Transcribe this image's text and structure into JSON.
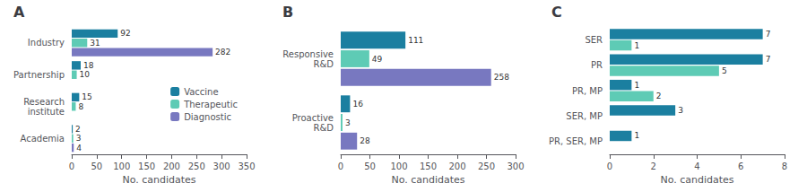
{
  "chart_data": [
    {
      "type": "bar",
      "title": "A",
      "orientation": "horizontal",
      "categories": [
        "Industry",
        "Partnership",
        "Research\ninstitute",
        "Academia"
      ],
      "series": [
        {
          "name": "Vaccine",
          "color": "#1b7fa0",
          "values": [
            92,
            18,
            15,
            2
          ]
        },
        {
          "name": "Therapeutic",
          "color": "#5ecbb5",
          "values": [
            31,
            10,
            8,
            3
          ]
        },
        {
          "name": "Diagnostic",
          "color": "#7878c0",
          "values": [
            282,
            0,
            0,
            4
          ]
        }
      ],
      "xlim": [
        0,
        350
      ],
      "xticks": [
        0,
        50,
        100,
        150,
        200,
        250,
        300,
        350
      ],
      "xlabel": "No. candidates",
      "data_labels": true,
      "grid": false,
      "legend": "right"
    },
    {
      "type": "bar",
      "title": "B",
      "orientation": "horizontal",
      "categories": [
        "Responsive\nR&D",
        "Proactive\nR&D"
      ],
      "series": [
        {
          "name": "Vaccine",
          "color": "#1b7fa0",
          "values": [
            111,
            16
          ]
        },
        {
          "name": "Therapeutic",
          "color": "#5ecbb5",
          "values": [
            49,
            3
          ]
        },
        {
          "name": "Diagnostic",
          "color": "#7878c0",
          "values": [
            258,
            28
          ]
        }
      ],
      "xlim": [
        0,
        300
      ],
      "xticks": [
        0,
        50,
        100,
        150,
        200,
        250,
        300
      ],
      "xlabel": "No. candidates",
      "data_labels": true,
      "grid": false
    },
    {
      "type": "bar",
      "title": "C",
      "orientation": "horizontal",
      "categories": [
        "SER",
        "PR",
        "PR, MP",
        "SER, MP",
        "PR, SER, MP"
      ],
      "series": [
        {
          "name": "Vaccine",
          "color": "#1b7fa0",
          "values": [
            7,
            7,
            1,
            3,
            1
          ]
        },
        {
          "name": "Therapeutic",
          "color": "#5ecbb5",
          "values": [
            1,
            5,
            2,
            0,
            0
          ]
        }
      ],
      "xlim": [
        0,
        8
      ],
      "xticks": [
        0,
        2,
        4,
        6,
        8
      ],
      "xlabel": "No. candidates",
      "data_labels": true,
      "grid": false
    }
  ]
}
